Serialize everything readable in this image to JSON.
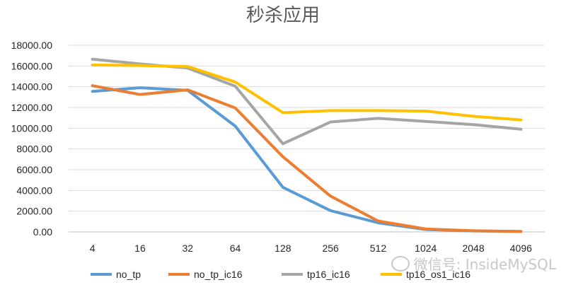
{
  "chart_data": {
    "type": "line",
    "title": "秒杀应用",
    "categories": [
      "4",
      "16",
      "32",
      "64",
      "128",
      "256",
      "512",
      "1024",
      "2048",
      "4096"
    ],
    "y_ticks": [
      "0.00",
      "2000.00",
      "4000.00",
      "6000.00",
      "8000.00",
      "10000.00",
      "12000.00",
      "14000.00",
      "16000.00",
      "18000.00"
    ],
    "ylim": [
      0,
      18000
    ],
    "grid": true,
    "legend_position": "bottom",
    "series": [
      {
        "name": "no_tp",
        "color": "#5B9BD5",
        "values": [
          13550,
          13900,
          13650,
          10200,
          4300,
          2050,
          880,
          230,
          90,
          40
        ]
      },
      {
        "name": "no_tp_ic16",
        "color": "#ED7D31",
        "values": [
          14100,
          13250,
          13700,
          11950,
          7250,
          3450,
          1050,
          280,
          110,
          40
        ]
      },
      {
        "name": "tp16_ic16",
        "color": "#A5A5A5",
        "values": [
          16650,
          16200,
          15800,
          14050,
          8500,
          10600,
          10950,
          10650,
          10350,
          9900
        ]
      },
      {
        "name": "tp16_os1_ic16",
        "color": "#FFC000",
        "values": [
          16100,
          16050,
          15950,
          14450,
          11500,
          11700,
          11700,
          11650,
          11150,
          10800
        ]
      }
    ]
  },
  "watermark": {
    "text": "微信号: InsideMySQL"
  }
}
